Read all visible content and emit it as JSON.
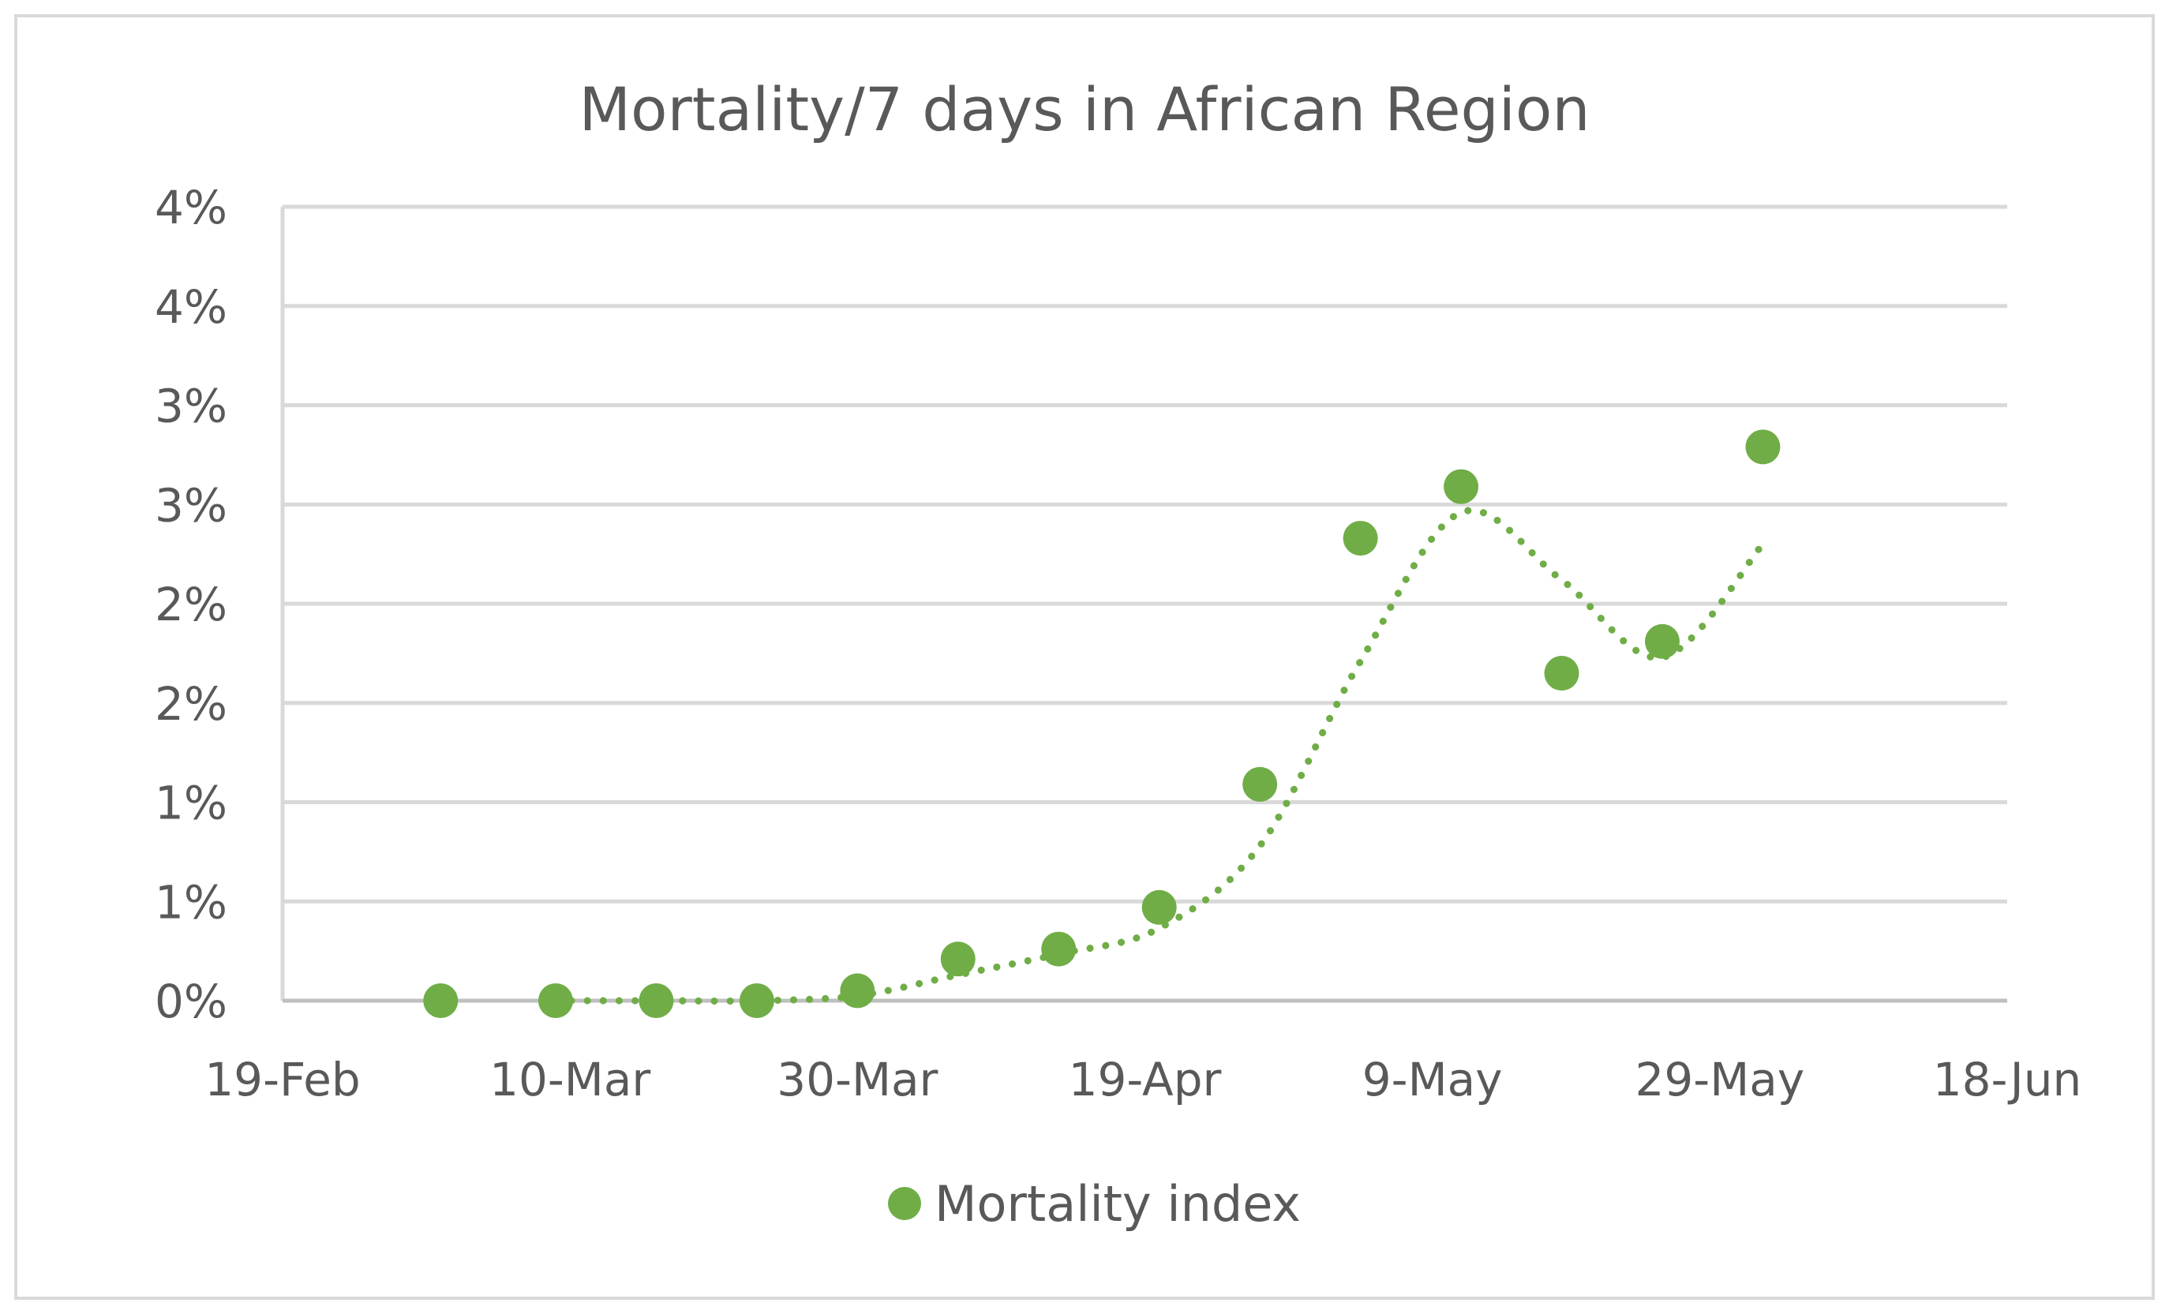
{
  "chart_data": {
    "type": "scatter",
    "title": "Mortality/7 days in African Region",
    "xlabel": "",
    "ylabel": "",
    "x_tick_labels": [
      "19-Feb",
      "10-Mar",
      "30-Mar",
      "19-Apr",
      "9-May",
      "29-May",
      "18-Jun"
    ],
    "x_tick_days": [
      0,
      20,
      40,
      60,
      80,
      100,
      120
    ],
    "y_tick_labels": [
      "0%",
      "1%",
      "1%",
      "2%",
      "2%",
      "3%",
      "3%",
      "4%",
      "4%"
    ],
    "y_tick_values": [
      0,
      0.5,
      1.0,
      1.5,
      2.0,
      2.5,
      3.0,
      3.5,
      4.0
    ],
    "xlim_days": [
      0,
      120
    ],
    "ylim": [
      0,
      4.0
    ],
    "grid": true,
    "legend_position": "bottom",
    "series": [
      {
        "name": "Mortality index",
        "color": "#70AD47",
        "points": [
          {
            "date": "3-Mar",
            "day": 11,
            "value": 0.0
          },
          {
            "date": "11-Mar",
            "day": 19,
            "value": 0.0
          },
          {
            "date": "18-Mar",
            "day": 26,
            "value": 0.0
          },
          {
            "date": "25-Mar",
            "day": 33,
            "value": 0.0
          },
          {
            "date": "1-Apr",
            "day": 40,
            "value": 0.05
          },
          {
            "date": "8-Apr",
            "day": 47,
            "value": 0.21
          },
          {
            "date": "15-Apr",
            "day": 54,
            "value": 0.26
          },
          {
            "date": "22-Apr",
            "day": 61,
            "value": 0.47
          },
          {
            "date": "29-Apr",
            "day": 68,
            "value": 1.09
          },
          {
            "date": "6-May",
            "day": 75,
            "value": 2.33
          },
          {
            "date": "13-May",
            "day": 82,
            "value": 2.59
          },
          {
            "date": "20-May",
            "day": 89,
            "value": 1.65
          },
          {
            "date": "27-May",
            "day": 96,
            "value": 1.81
          },
          {
            "date": "3-Jun",
            "day": 103,
            "value": 2.79
          }
        ]
      }
    ],
    "trendline": {
      "type": "moving-average",
      "style": "dotted",
      "color": "#70AD47",
      "points": [
        {
          "day": 19,
          "value": 0.0
        },
        {
          "day": 26,
          "value": 0.0
        },
        {
          "day": 33,
          "value": 0.0
        },
        {
          "day": 40,
          "value": 0.025
        },
        {
          "day": 47,
          "value": 0.13
        },
        {
          "day": 54,
          "value": 0.235
        },
        {
          "day": 61,
          "value": 0.365
        },
        {
          "day": 68,
          "value": 0.78
        },
        {
          "day": 75,
          "value": 1.71
        },
        {
          "day": 82,
          "value": 2.46
        },
        {
          "day": 89,
          "value": 2.12
        },
        {
          "day": 96,
          "value": 1.73
        },
        {
          "day": 103,
          "value": 2.3
        }
      ]
    }
  }
}
